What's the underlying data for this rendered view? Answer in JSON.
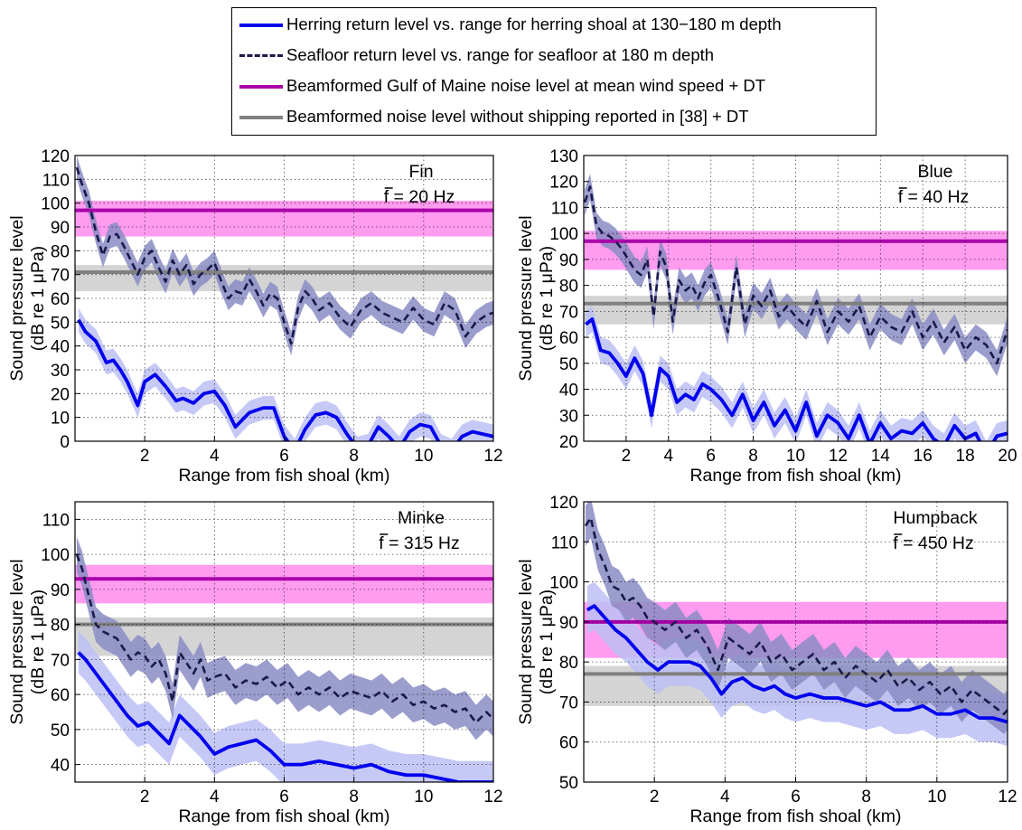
{
  "legend": {
    "items": [
      {
        "label": "Herring return level vs. range for herring shoal at 130−180 m depth",
        "color": "#0000ee",
        "style": "solid"
      },
      {
        "label": "Seafloor return level vs. range for seafloor at 180 m depth",
        "color": "#1a1a4a",
        "style": "dashed"
      },
      {
        "label": "Beamformed Gulf of Maine noise level at mean wind speed + DT",
        "color": "#aa00aa",
        "style": "solid"
      },
      {
        "label": "Beamformed noise level without shipping reported in [38] + DT",
        "color": "#808080",
        "style": "solid"
      }
    ]
  },
  "colors": {
    "herring_line": "#0000ee",
    "herring_band": "#bcc0f4",
    "seafloor_line": "#1a1a4a",
    "seafloor_band": "#8a8cc4",
    "noise_line": "#aa00aa",
    "noise_band": "#ff9cf0",
    "ship_line": "#808080",
    "ship_band": "#cfcfcf"
  },
  "chart_data": [
    {
      "type": "line",
      "species": "Fin",
      "freq_label": "f = 20 Hz",
      "xlabel": "Range from fish shoal (km)",
      "ylabel": [
        "Sound pressure level",
        "(dB re 1 μPa)"
      ],
      "xlim": [
        0,
        12
      ],
      "ylim": [
        0,
        120
      ],
      "xticks": [
        2,
        4,
        6,
        8,
        10,
        12
      ],
      "yticks": [
        0,
        10,
        20,
        30,
        40,
        50,
        60,
        70,
        80,
        90,
        100,
        110,
        120
      ],
      "grid": true,
      "noise_level": 97,
      "noise_band": [
        86,
        101
      ],
      "ship_level": 71,
      "ship_band": [
        63,
        74
      ],
      "herring": {
        "x": [
          0.1,
          0.3,
          0.6,
          0.9,
          1.1,
          1.3,
          1.5,
          1.8,
          2.0,
          2.3,
          2.6,
          2.9,
          3.1,
          3.4,
          3.7,
          4.0,
          4.3,
          4.6,
          5.0,
          5.4,
          5.7,
          6.0,
          6.3,
          6.6,
          6.9,
          7.2,
          7.5,
          7.8,
          8.1,
          8.4,
          8.7,
          9.0,
          9.3,
          9.6,
          9.9,
          10.2,
          10.5,
          10.8,
          11.1,
          11.4,
          11.7,
          12.0
        ],
        "y": [
          51,
          46,
          42,
          33,
          34,
          30,
          25,
          15,
          25,
          28,
          23,
          17,
          18,
          16,
          20,
          21,
          15,
          6,
          12,
          14,
          14,
          2,
          -4,
          5,
          11,
          12,
          10,
          3,
          -3,
          -2,
          6,
          2,
          -3,
          4,
          7,
          6,
          -2,
          -4,
          2,
          4,
          3,
          2
        ],
        "band": 5
      },
      "seafloor": {
        "x": [
          0.05,
          0.2,
          0.4,
          0.6,
          0.8,
          1.0,
          1.2,
          1.4,
          1.6,
          1.8,
          2.0,
          2.2,
          2.4,
          2.6,
          2.8,
          3.0,
          3.2,
          3.4,
          3.6,
          3.8,
          4.0,
          4.2,
          4.4,
          4.6,
          4.8,
          5.0,
          5.2,
          5.4,
          5.6,
          5.8,
          6.0,
          6.2,
          6.4,
          6.6,
          6.8,
          7.0,
          7.3,
          7.6,
          7.9,
          8.2,
          8.5,
          8.8,
          9.1,
          9.4,
          9.7,
          10.0,
          10.3,
          10.6,
          10.9,
          11.2,
          11.5,
          11.8,
          12.0
        ],
        "y": [
          115,
          108,
          100,
          88,
          78,
          86,
          87,
          82,
          76,
          70,
          77,
          80,
          73,
          67,
          76,
          70,
          74,
          66,
          70,
          72,
          75,
          67,
          60,
          63,
          62,
          68,
          63,
          57,
          62,
          60,
          50,
          41,
          56,
          63,
          60,
          55,
          58,
          52,
          48,
          55,
          58,
          54,
          52,
          50,
          56,
          51,
          49,
          58,
          55,
          44,
          50,
          53,
          54
        ],
        "band": 5
      }
    },
    {
      "type": "line",
      "species": "Blue",
      "freq_label": "f = 40 Hz",
      "xlabel": "Range from fish shoal (km)",
      "ylabel": [
        "Sound pressure level",
        "(dB re 1 μPa)"
      ],
      "xlim": [
        0,
        20
      ],
      "ylim": [
        20,
        130
      ],
      "xticks": [
        2,
        4,
        6,
        8,
        10,
        12,
        14,
        16,
        18,
        20
      ],
      "yticks": [
        20,
        30,
        40,
        50,
        60,
        70,
        80,
        90,
        100,
        110,
        120,
        130
      ],
      "grid": true,
      "noise_level": 97,
      "noise_band": [
        86,
        101
      ],
      "ship_level": 73,
      "ship_band": [
        65,
        76
      ],
      "herring": {
        "x": [
          0.1,
          0.4,
          0.8,
          1.2,
          1.6,
          2.0,
          2.4,
          2.8,
          3.2,
          3.6,
          4.0,
          4.4,
          4.8,
          5.2,
          5.6,
          6.0,
          6.5,
          7.0,
          7.5,
          8.0,
          8.5,
          9.0,
          9.5,
          10.0,
          10.5,
          11.0,
          11.5,
          12.0,
          12.5,
          13.0,
          13.5,
          14.0,
          14.5,
          15.0,
          15.5,
          16.0,
          16.5,
          17.0,
          17.5,
          18.0,
          18.5,
          19.0,
          19.5,
          20.0
        ],
        "y": [
          65,
          67,
          55,
          54,
          50,
          45,
          52,
          46,
          30,
          48,
          45,
          35,
          38,
          36,
          42,
          40,
          36,
          30,
          38,
          28,
          35,
          26,
          32,
          24,
          35,
          22,
          30,
          27,
          21,
          30,
          19,
          27,
          21,
          24,
          23,
          27,
          21,
          18,
          26,
          21,
          23,
          15,
          22,
          23
        ],
        "band": 5
      },
      "seafloor": {
        "x": [
          0.05,
          0.3,
          0.6,
          0.9,
          1.2,
          1.5,
          1.8,
          2.1,
          2.4,
          2.7,
          3.0,
          3.3,
          3.6,
          3.9,
          4.2,
          4.5,
          4.8,
          5.1,
          5.4,
          5.7,
          6.0,
          6.4,
          6.8,
          7.2,
          7.6,
          8.0,
          8.4,
          8.8,
          9.2,
          9.6,
          10.0,
          10.5,
          11.0,
          11.5,
          12.0,
          12.5,
          13.0,
          13.5,
          14.0,
          14.5,
          15.0,
          15.5,
          16.0,
          16.5,
          17.0,
          17.5,
          18.0,
          18.5,
          19.0,
          19.5,
          20.0
        ],
        "y": [
          112,
          118,
          103,
          100,
          99,
          97,
          94,
          90,
          86,
          84,
          90,
          68,
          93,
          87,
          66,
          82,
          78,
          80,
          75,
          81,
          84,
          74,
          62,
          87,
          65,
          76,
          72,
          78,
          68,
          72,
          68,
          64,
          74,
          62,
          70,
          66,
          72,
          60,
          68,
          64,
          62,
          70,
          60,
          66,
          58,
          64,
          55,
          60,
          57,
          50,
          63
        ],
        "band": 5
      }
    },
    {
      "type": "line",
      "species": "Minke",
      "freq_label": "f = 315 Hz",
      "xlabel": "Range from fish shoal (km)",
      "ylabel": [
        "Sound pressure level",
        "(dB re 1 μPa)"
      ],
      "xlim": [
        0,
        12
      ],
      "ylim": [
        35,
        115
      ],
      "xticks": [
        2,
        4,
        6,
        8,
        10,
        12
      ],
      "yticks": [
        40,
        50,
        60,
        70,
        80,
        90,
        100,
        110
      ],
      "grid": true,
      "noise_level": 93,
      "noise_band": [
        86,
        97
      ],
      "ship_level": 80,
      "ship_band": [
        71,
        82
      ],
      "herring": {
        "x": [
          0.1,
          0.3,
          0.6,
          0.9,
          1.2,
          1.5,
          1.8,
          2.1,
          2.4,
          2.7,
          3.0,
          3.3,
          3.6,
          4.0,
          4.4,
          4.8,
          5.2,
          5.6,
          6.0,
          6.5,
          7.0,
          7.5,
          8.0,
          8.5,
          9.0,
          9.5,
          10.0,
          10.5,
          11.0,
          11.5,
          12.0
        ],
        "y": [
          72,
          70,
          66,
          62,
          58,
          54,
          51,
          52,
          49,
          46,
          54,
          51,
          48,
          43,
          45,
          46,
          47,
          44,
          40,
          40,
          41,
          40,
          39,
          40,
          38,
          37,
          37,
          36,
          35,
          35,
          35
        ],
        "band": 6
      },
      "seafloor": {
        "x": [
          0.05,
          0.2,
          0.4,
          0.6,
          0.8,
          1.0,
          1.2,
          1.4,
          1.6,
          1.8,
          2.0,
          2.2,
          2.4,
          2.6,
          2.8,
          3.0,
          3.2,
          3.4,
          3.6,
          3.8,
          4.0,
          4.3,
          4.6,
          4.9,
          5.2,
          5.5,
          5.8,
          6.1,
          6.4,
          6.7,
          7.0,
          7.3,
          7.6,
          7.9,
          8.2,
          8.5,
          8.8,
          9.1,
          9.4,
          9.7,
          10.0,
          10.3,
          10.6,
          10.9,
          11.2,
          11.5,
          11.8,
          12.0
        ],
        "y": [
          100,
          96,
          88,
          80,
          78,
          77,
          76,
          73,
          70,
          72,
          71,
          68,
          70,
          66,
          58,
          72,
          69,
          66,
          70,
          64,
          65,
          66,
          62,
          64,
          63,
          65,
          62,
          64,
          60,
          62,
          60,
          62,
          59,
          61,
          60,
          59,
          61,
          58,
          60,
          57,
          58,
          56,
          57,
          55,
          56,
          52,
          55,
          53
        ],
        "band": 5
      }
    },
    {
      "type": "line",
      "species": "Humpback",
      "freq_label": "f = 450 Hz",
      "xlabel": "Range from fish shoal (km)",
      "ylabel": [
        "Sound pressure level",
        "(dB re 1 μPa)"
      ],
      "xlim": [
        0,
        12
      ],
      "ylim": [
        50,
        120
      ],
      "xticks": [
        2,
        4,
        6,
        8,
        10,
        12
      ],
      "yticks": [
        50,
        60,
        70,
        80,
        90,
        100,
        110,
        120
      ],
      "grid": true,
      "noise_level": 90,
      "noise_band": [
        81,
        95
      ],
      "ship_level": 77,
      "ship_band": [
        69,
        79
      ],
      "herring": {
        "x": [
          0.1,
          0.3,
          0.6,
          0.9,
          1.2,
          1.5,
          1.8,
          2.1,
          2.4,
          2.7,
          3.0,
          3.3,
          3.6,
          3.9,
          4.2,
          4.5,
          4.8,
          5.1,
          5.4,
          5.7,
          6.0,
          6.4,
          6.8,
          7.2,
          7.6,
          8.0,
          8.4,
          8.8,
          9.2,
          9.6,
          10.0,
          10.4,
          10.8,
          11.2,
          11.6,
          12.0
        ],
        "y": [
          93,
          94,
          91,
          88,
          86,
          83,
          80,
          78,
          80,
          80,
          80,
          79,
          76,
          72,
          75,
          76,
          74,
          73,
          74,
          72,
          71,
          72,
          71,
          71,
          70,
          69,
          70,
          68,
          68,
          69,
          67,
          67,
          68,
          66,
          66,
          65
        ],
        "band": 6
      },
      "seafloor": {
        "x": [
          0.05,
          0.2,
          0.4,
          0.6,
          0.8,
          1.0,
          1.2,
          1.4,
          1.6,
          1.8,
          2.0,
          2.3,
          2.6,
          2.9,
          3.2,
          3.5,
          3.8,
          4.1,
          4.4,
          4.7,
          5.0,
          5.3,
          5.6,
          5.9,
          6.2,
          6.5,
          6.8,
          7.1,
          7.4,
          7.7,
          8.0,
          8.3,
          8.6,
          8.9,
          9.2,
          9.5,
          9.8,
          10.1,
          10.4,
          10.7,
          11.0,
          11.3,
          11.6,
          11.9,
          12.0
        ],
        "y": [
          114,
          116,
          108,
          104,
          99,
          98,
          95,
          96,
          94,
          91,
          90,
          88,
          90,
          86,
          88,
          84,
          78,
          86,
          84,
          82,
          85,
          80,
          82,
          78,
          80,
          82,
          78,
          80,
          76,
          79,
          77,
          75,
          78,
          74,
          76,
          73,
          75,
          72,
          74,
          70,
          73,
          71,
          69,
          67,
          68
        ],
        "band": 5
      }
    }
  ]
}
